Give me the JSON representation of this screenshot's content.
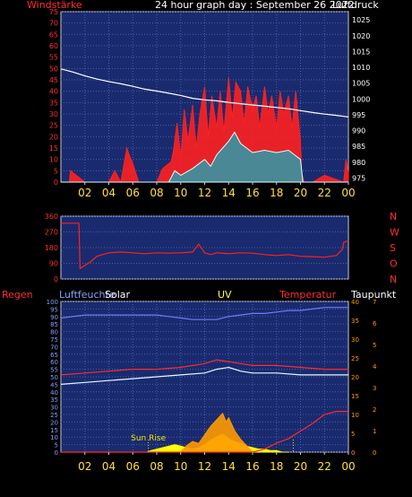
{
  "colors": {
    "background": "#000000",
    "plot_bg": "#1a2a6e",
    "grid": "#4a5fae",
    "frame": "#c8c8d8",
    "wind": "#ff2020",
    "gust": "#ffffff",
    "pressure": "#ffffff",
    "humidity": "#6e7cf4",
    "solar": "#ffff00",
    "temperature": "#ff2a2a",
    "dewpoint": "#ff5a2a",
    "uv": "#ff9a00",
    "sunmark": "#e8e800",
    "title": "#ffffff",
    "humidity_label": "#8aa0ff"
  },
  "header": {
    "left_label": "Windstärke",
    "title": "24 hour graph day : September 26 2022",
    "right_label": "Luftdruck"
  },
  "x_ticks": [
    "02",
    "04",
    "06",
    "08",
    "10",
    "12",
    "14",
    "16",
    "18",
    "20",
    "22",
    "00"
  ],
  "labels3": {
    "regen": "Regen",
    "luftfeuchte": "Luftfeuchte",
    "solar": "Solar",
    "uv": "UV",
    "temperatur": "Temperatur",
    "taupunkt": "Taupunkt",
    "sun_rise": "Sun Rise"
  },
  "chart_data": [
    {
      "type": "line",
      "x_unit": "hour",
      "x_range": [
        0,
        24
      ],
      "left_axis": {
        "label": "Windstärke",
        "ticks": [
          0,
          5,
          10,
          15,
          20,
          25,
          30,
          35,
          40,
          45,
          50,
          55,
          60,
          65,
          70,
          75
        ],
        "range": [
          0,
          75
        ]
      },
      "right_axis": {
        "label": "Luftdruck",
        "ticks": [
          975,
          980,
          985,
          990,
          995,
          1000,
          1005,
          1010,
          1015,
          1020,
          1025
        ],
        "range": [
          973.7,
          1027.6
        ]
      },
      "grid": true,
      "series": [
        {
          "axis": "right",
          "x": [
            0,
            1,
            2,
            3,
            4,
            5,
            6,
            7,
            8,
            9,
            10,
            11,
            12,
            13,
            14,
            15,
            16,
            17,
            18,
            19,
            20,
            21,
            22,
            23,
            24
          ],
          "y": [
            1009.5,
            1008.5,
            1007.3,
            1006.3,
            1005.5,
            1004.8,
            1004,
            1003.1,
            1002.5,
            1001.8,
            1001.1,
            1000.2,
            999.7,
            999.4,
            998.9,
            998.5,
            998.1,
            997.7,
            997.3,
            996.9,
            996.3,
            995.7,
            995.2,
            994.8,
            994.3
          ]
        },
        {
          "axis": "left",
          "x": [
            0,
            0.7,
            0.8,
            2,
            2.5,
            4,
            4.5,
            5,
            5.3,
            5.5,
            5.7,
            6,
            6.5,
            8,
            8.5,
            9.2,
            9.4,
            9.7,
            10,
            10.3,
            10.6,
            11,
            11.3,
            11.6,
            12,
            12.3,
            12.6,
            13,
            13.3,
            13.6,
            14,
            14.3,
            14.6,
            15,
            15.3,
            15.6,
            16,
            16.3,
            16.6,
            17,
            17.3,
            17.6,
            18,
            18.3,
            18.6,
            19,
            19.3,
            19.6,
            20,
            20.1,
            20.3,
            21,
            22,
            23.6,
            23.8,
            24
          ],
          "y": [
            0,
            0,
            5,
            0,
            0,
            0,
            5,
            0,
            9,
            15,
            12,
            8,
            0,
            0,
            6,
            9,
            14,
            26,
            11,
            32,
            18,
            34,
            15,
            30,
            42,
            20,
            38,
            24,
            40,
            22,
            46,
            28,
            44,
            40,
            26,
            42,
            32,
            38,
            24,
            42,
            30,
            38,
            24,
            40,
            30,
            38,
            24,
            40,
            18,
            4,
            0,
            0,
            3,
            0,
            10,
            4
          ]
        },
        {
          "axis": "left",
          "x": [
            0,
            9,
            9.5,
            10,
            11,
            12,
            12.5,
            13,
            13.5,
            14,
            14.5,
            15,
            16,
            17,
            18,
            19,
            19.5,
            20,
            20.2,
            24
          ],
          "y": [
            0,
            0,
            5,
            3,
            6,
            10,
            7,
            12,
            15,
            18,
            22,
            17,
            13,
            14,
            13,
            14,
            12,
            10,
            0,
            0
          ]
        }
      ]
    },
    {
      "type": "line",
      "x_unit": "hour",
      "x_range": [
        0,
        24
      ],
      "left_axis": {
        "ticks": [
          0,
          90,
          180,
          270,
          360
        ],
        "range": [
          0,
          360
        ]
      },
      "right_axis": {
        "ticks": [
          "N",
          "W",
          "S",
          "O",
          "N"
        ]
      },
      "grid": true,
      "series": [
        {
          "x": [
            0,
            1.5,
            1.6,
            2.5,
            3,
            4,
            5,
            6,
            7,
            8,
            9,
            10,
            11,
            11.5,
            12,
            12.5,
            13,
            14,
            15,
            16,
            17,
            18,
            19,
            20,
            21,
            22,
            23,
            23.5,
            23.6,
            24
          ],
          "y": [
            320,
            320,
            60,
            100,
            130,
            150,
            155,
            150,
            145,
            150,
            148,
            150,
            155,
            200,
            150,
            140,
            150,
            145,
            150,
            148,
            140,
            135,
            140,
            130,
            128,
            125,
            135,
            170,
            210,
            220
          ]
        }
      ]
    },
    {
      "type": "line",
      "x_unit": "hour",
      "x_range": [
        0,
        24
      ],
      "left_axis": {
        "label": "Regen",
        "ticks": [
          0,
          5,
          10,
          15,
          20,
          25,
          30,
          35,
          40,
          45,
          50,
          55,
          60,
          65,
          70,
          75,
          80,
          85,
          90,
          95,
          100
        ],
        "range": [
          0,
          100
        ]
      },
      "right_axis_outer": {
        "label": "Temperatur",
        "ticks": [
          0,
          5,
          10,
          15,
          20,
          25,
          30,
          35,
          40
        ],
        "range": [
          0,
          40
        ]
      },
      "right_axis_inner": {
        "label": "UV",
        "ticks": [
          0,
          1,
          2,
          3,
          4,
          5,
          6,
          7
        ],
        "range": [
          0,
          7
        ]
      },
      "annotations": [
        {
          "text": "Sun Rise",
          "x": 7.3
        }
      ],
      "grid": true,
      "series": [
        {
          "name": "Luftfeuchte",
          "x": [
            0,
            2,
            3,
            4,
            5,
            6,
            7,
            8,
            9,
            10,
            11,
            12,
            13,
            14,
            15,
            16,
            17,
            18,
            19,
            20,
            21,
            22,
            23,
            24
          ],
          "y": [
            89,
            91,
            91,
            91,
            91,
            91,
            91,
            91,
            90,
            89,
            88,
            88,
            88,
            90,
            91,
            92,
            92,
            93,
            94,
            94,
            95,
            96,
            96,
            96
          ]
        },
        {
          "name": "Temperatur",
          "x": [
            0,
            2,
            4,
            6,
            8,
            10,
            12,
            13,
            14,
            15,
            16,
            18,
            20,
            22,
            24
          ],
          "y": [
            20.5,
            21,
            21.5,
            22,
            22,
            22.5,
            23.5,
            24.5,
            24,
            23.5,
            23,
            23,
            22.5,
            22,
            22
          ]
        },
        {
          "name": "Taupunkt",
          "x": [
            0,
            2,
            4,
            6,
            8,
            10,
            12,
            13,
            14,
            15,
            16,
            18,
            20,
            22,
            24
          ],
          "y": [
            18,
            18.5,
            19,
            19.5,
            20,
            20.5,
            21,
            22,
            22.5,
            21.5,
            21,
            21,
            20.5,
            20.5,
            20.5
          ]
        },
        {
          "name": "Regen",
          "x": [
            0,
            6,
            12,
            13,
            14,
            15,
            16,
            17,
            17.5,
            18,
            19,
            20,
            21,
            22,
            23,
            24
          ],
          "y": [
            0,
            0,
            0,
            0,
            0,
            0,
            0,
            2,
            4,
            6,
            9,
            14,
            19,
            25,
            27,
            27
          ]
        },
        {
          "name": "Solar",
          "x": [
            7.2,
            7.5,
            8,
            8.5,
            9,
            9.5,
            10,
            10.5,
            11,
            11.5,
            12,
            12.5,
            13,
            13.5,
            14,
            14.5,
            15,
            15.5,
            16,
            16.5,
            17,
            17.5,
            18,
            18.5,
            19
          ],
          "y": [
            0,
            1,
            2,
            3,
            4,
            5,
            4,
            3,
            2,
            3,
            5,
            8,
            10,
            12,
            9,
            7,
            6,
            4,
            3,
            2,
            2,
            1,
            1,
            0,
            0
          ]
        },
        {
          "name": "UV",
          "x": [
            10,
            10.5,
            11,
            11.5,
            12,
            12.5,
            13,
            13.5,
            13.8,
            14,
            14.5,
            15,
            15.5,
            16
          ],
          "y": [
            0,
            0.3,
            0.5,
            0.4,
            0.8,
            1.2,
            1.5,
            1.8,
            1.4,
            1.6,
            1.0,
            0.6,
            0.3,
            0
          ]
        }
      ]
    }
  ]
}
